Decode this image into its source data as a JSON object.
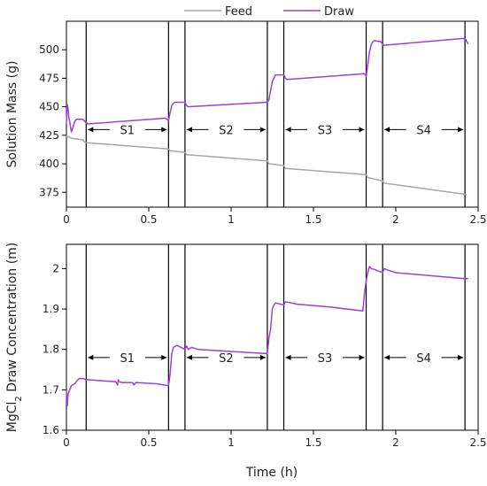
{
  "chart_data": [
    {
      "type": "line",
      "xlabel": "",
      "ylabel": "Solution Mass (g)",
      "xlim": [
        0,
        2.5
      ],
      "ylim": [
        362,
        525
      ],
      "xticks": [
        0,
        0.5,
        1,
        1.5,
        2,
        2.5
      ],
      "xtick_labels": [
        "0",
        "0.5",
        "1",
        "1.5",
        "2",
        "2.5"
      ],
      "yticks": [
        375,
        400,
        425,
        450,
        475,
        500
      ],
      "ytick_labels": [
        "375",
        "400",
        "425",
        "450",
        "475",
        "500"
      ],
      "legend": {
        "placement": "top-center",
        "entries": [
          "Feed",
          "Draw"
        ]
      },
      "grid": false,
      "colors": {
        "Feed": "#a6a6a6",
        "Draw": "#9b3fe0",
        "divider": "#000000"
      },
      "series": [
        {
          "name": "Feed",
          "x": [
            0,
            0.005,
            0.01,
            0.02,
            0.03,
            0.1,
            0.11,
            0.12,
            0.62,
            0.63,
            0.72,
            0.73,
            1.22,
            1.23,
            1.32,
            1.33,
            1.82,
            1.83,
            1.92,
            1.93,
            2.43
          ],
          "y": [
            425,
            423,
            424,
            423,
            422.5,
            421,
            419,
            418.5,
            413,
            411.5,
            410,
            408,
            402.5,
            400,
            398.5,
            396,
            390.5,
            388,
            385,
            383,
            373
          ]
        },
        {
          "name": "Draw",
          "x": [
            0,
            0.005,
            0.01,
            0.015,
            0.02,
            0.03,
            0.04,
            0.05,
            0.06,
            0.08,
            0.1,
            0.12,
            0.13,
            0.6,
            0.62,
            0.63,
            0.64,
            0.65,
            0.66,
            0.72,
            0.73,
            0.74,
            1.22,
            1.23,
            1.235,
            1.24,
            1.25,
            1.27,
            1.32,
            1.33,
            1.34,
            1.81,
            1.82,
            1.83,
            1.84,
            1.85,
            1.86,
            1.87,
            1.91,
            1.92,
            1.93,
            2.42,
            2.44
          ],
          "y": [
            435,
            452,
            448,
            440,
            437,
            428,
            432,
            437,
            439,
            439,
            439,
            436,
            435,
            440,
            438,
            445,
            451,
            453,
            454,
            454,
            451,
            450,
            454,
            456,
            461,
            464,
            472,
            478,
            478,
            475,
            474,
            479,
            477,
            487,
            498,
            504,
            507,
            508,
            507,
            505,
            504,
            510,
            505
          ]
        }
      ],
      "dividers": [
        0.12,
        0.62,
        0.72,
        1.22,
        1.32,
        1.82,
        1.92,
        2.42
      ],
      "annotations": [
        {
          "label": "S1",
          "from": 0.12,
          "to": 0.62,
          "y": 430
        },
        {
          "label": "S2",
          "from": 0.72,
          "to": 1.22,
          "y": 430
        },
        {
          "label": "S3",
          "from": 1.32,
          "to": 1.82,
          "y": 430
        },
        {
          "label": "S4",
          "from": 1.92,
          "to": 2.42,
          "y": 430
        }
      ]
    },
    {
      "type": "line",
      "xlabel": "Time (h)",
      "ylabel_main": "MgCl",
      "ylabel_sub": "2",
      "ylabel_rest": " Draw Concentration (m)",
      "xlim": [
        0,
        2.5
      ],
      "ylim": [
        1.6,
        2.06
      ],
      "xticks": [
        0,
        0.5,
        1,
        1.5,
        2,
        2.5
      ],
      "xtick_labels": [
        "0",
        "0.5",
        "1",
        "1.5",
        "2",
        "2.5"
      ],
      "yticks": [
        1.6,
        1.7,
        1.8,
        1.9,
        2.0
      ],
      "ytick_labels": [
        "1.6",
        "1.7",
        "1.8",
        "1.9",
        "2"
      ],
      "grid": false,
      "colors": {
        "Draw": "#9b3fe0",
        "divider": "#000000"
      },
      "series": [
        {
          "name": "Draw",
          "x": [
            0,
            0.005,
            0.01,
            0.02,
            0.03,
            0.05,
            0.06,
            0.07,
            0.08,
            0.1,
            0.12,
            0.3,
            0.31,
            0.315,
            0.32,
            0.34,
            0.4,
            0.41,
            0.42,
            0.5,
            0.55,
            0.62,
            0.63,
            0.64,
            0.65,
            0.67,
            0.72,
            0.73,
            0.74,
            0.76,
            0.8,
            1.2,
            1.22,
            1.225,
            1.23,
            1.24,
            1.25,
            1.26,
            1.27,
            1.32,
            1.33,
            1.4,
            1.6,
            1.8,
            1.81,
            1.82,
            1.83,
            1.84,
            1.85,
            1.87,
            1.92,
            1.93,
            1.96,
            2.0,
            2.42,
            2.44
          ],
          "y": [
            1.7,
            1.66,
            1.69,
            1.7,
            1.71,
            1.715,
            1.72,
            1.725,
            1.728,
            1.728,
            1.725,
            1.72,
            1.712,
            1.725,
            1.72,
            1.718,
            1.718,
            1.712,
            1.718,
            1.716,
            1.715,
            1.71,
            1.74,
            1.79,
            1.805,
            1.81,
            1.8,
            1.808,
            1.8,
            1.805,
            1.8,
            1.79,
            1.79,
            1.81,
            1.83,
            1.85,
            1.9,
            1.91,
            1.915,
            1.91,
            1.918,
            1.912,
            1.905,
            1.895,
            1.94,
            1.97,
            1.99,
            2.005,
            2.0,
            1.998,
            1.99,
            2.0,
            1.995,
            1.99,
            1.975,
            1.975
          ]
        }
      ],
      "dividers": [
        0.12,
        0.62,
        0.72,
        1.22,
        1.32,
        1.82,
        1.92,
        2.42
      ],
      "annotations": [
        {
          "label": "S1",
          "from": 0.12,
          "to": 0.62,
          "y": 1.78
        },
        {
          "label": "S2",
          "from": 0.72,
          "to": 1.22,
          "y": 1.78
        },
        {
          "label": "S3",
          "from": 1.32,
          "to": 1.82,
          "y": 1.78
        },
        {
          "label": "S4",
          "from": 1.92,
          "to": 2.42,
          "y": 1.78
        }
      ]
    }
  ]
}
